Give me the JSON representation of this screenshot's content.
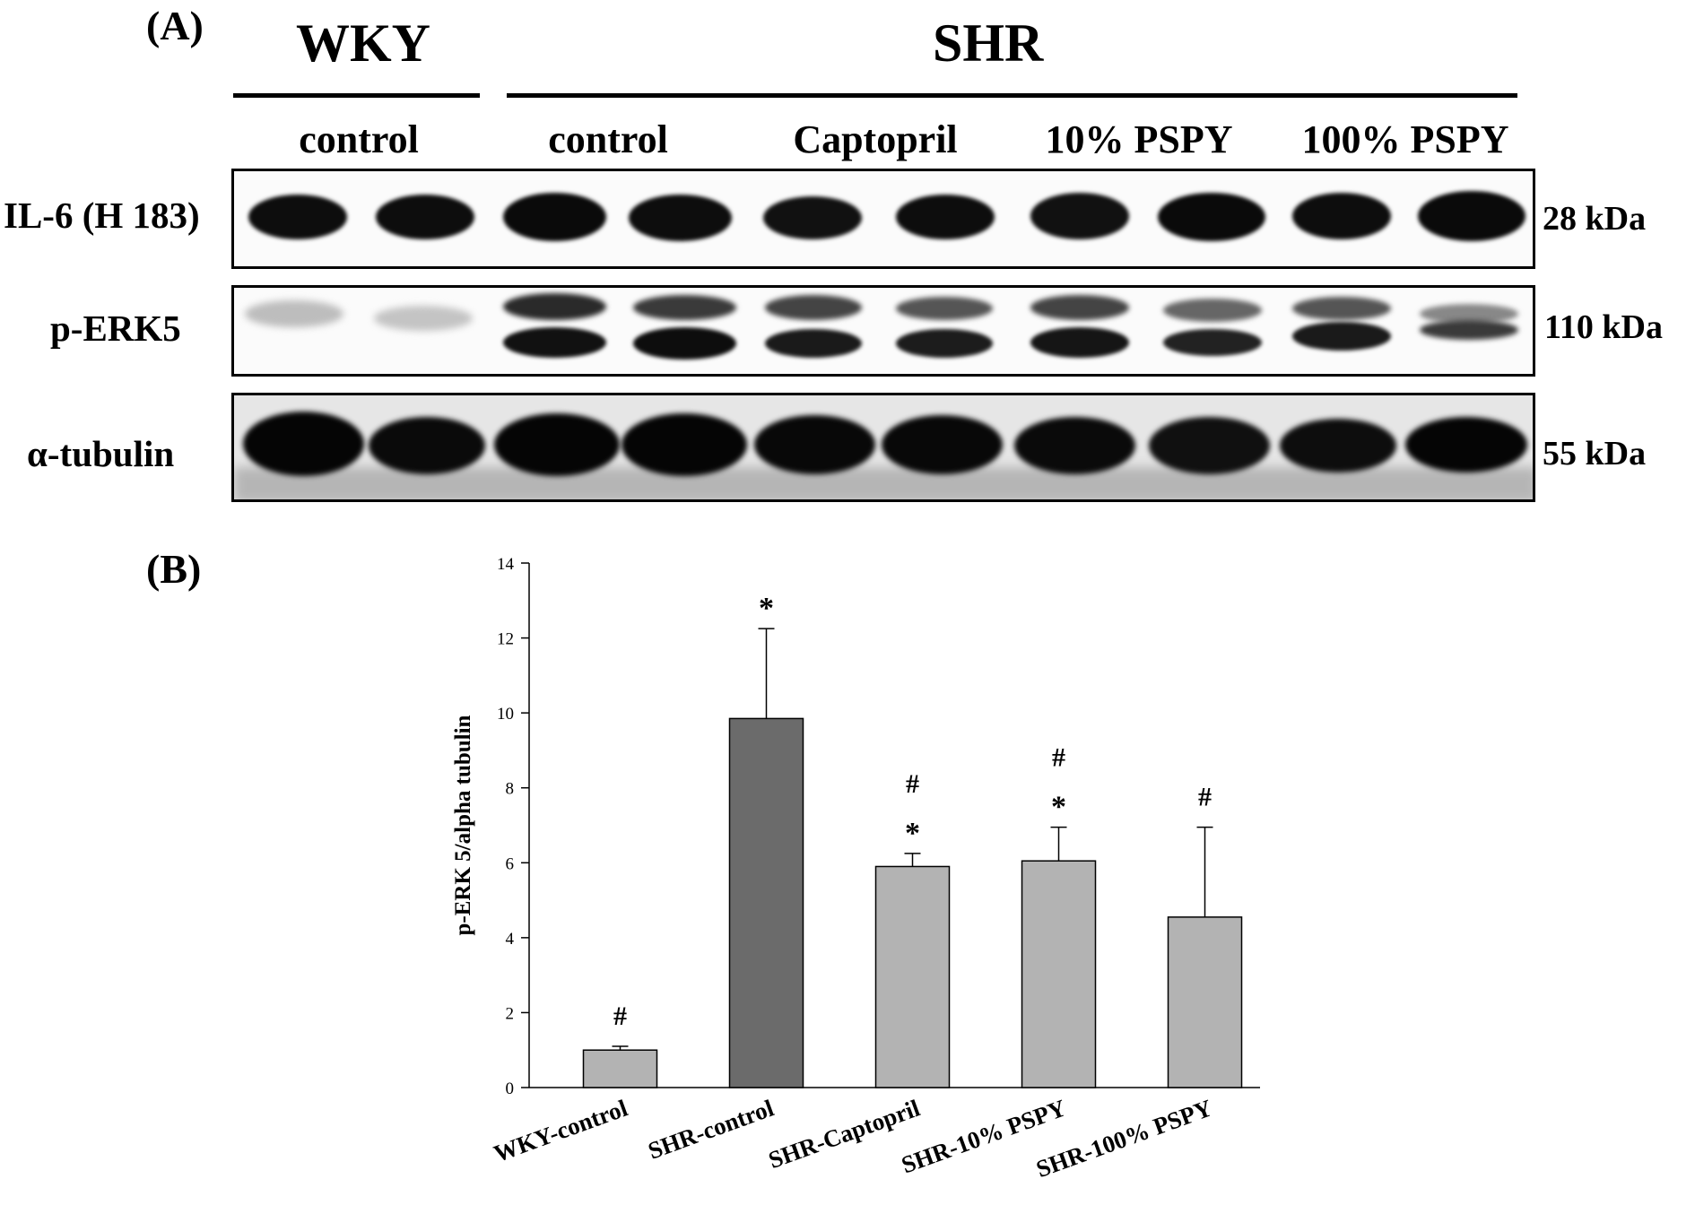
{
  "panel_a": {
    "letter": "(A)",
    "groups": [
      {
        "name": "WKY",
        "x1": 0,
        "x2": 0
      },
      {
        "name": "SHR"
      }
    ],
    "lanes": [
      "control",
      "control",
      "Captopril",
      "10% PSPY",
      "100% PSPY"
    ],
    "rows": [
      {
        "label": "IL-6 (H 183)",
        "kda": "28 kDa"
      },
      {
        "label": "p-ERK5",
        "kda": "110 kDa"
      },
      {
        "label": "α-tubulin",
        "kda": "55 kDa"
      }
    ]
  },
  "panel_b": {
    "letter": "(B)"
  },
  "chart_data": {
    "type": "bar",
    "ylabel": "p-ERK 5/alpha tubulin",
    "xlabel": "",
    "ylim": [
      0,
      14
    ],
    "yticks": [
      0,
      2,
      4,
      6,
      8,
      10,
      12,
      14
    ],
    "categories": [
      "WKY-control",
      "SHR-control",
      "SHR-Captopril",
      "SHR-10% PSPY",
      "SHR-100% PSPY"
    ],
    "values": [
      1.0,
      9.85,
      5.9,
      6.05,
      4.55
    ],
    "errors": [
      0.1,
      2.4,
      0.35,
      0.9,
      2.4
    ],
    "bar_colors": [
      "#b3b3b3",
      "#6b6b6b",
      "#b3b3b3",
      "#b3b3b3",
      "#b3b3b3"
    ],
    "annotations": [
      [
        "#"
      ],
      [
        "*"
      ],
      [
        "*",
        "#"
      ],
      [
        "*",
        "#"
      ],
      [
        "#"
      ]
    ],
    "grid": false
  }
}
